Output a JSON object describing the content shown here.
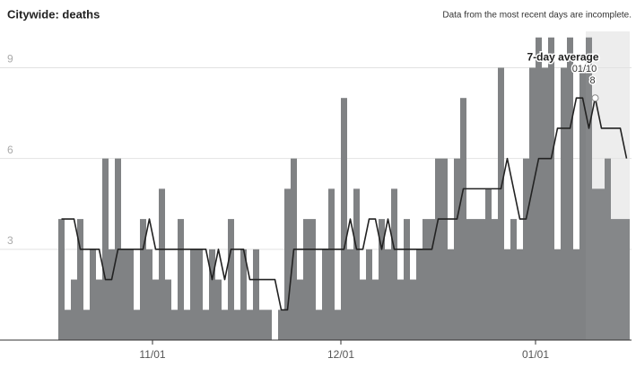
{
  "chart_data": {
    "type": "bar",
    "title": "Citywide: deaths",
    "note": "Data from the most recent days are incomplete.",
    "x": [
      "10/17",
      "10/18",
      "10/19",
      "10/20",
      "10/21",
      "10/22",
      "10/23",
      "10/24",
      "10/25",
      "10/26",
      "10/27",
      "10/28",
      "10/29",
      "10/30",
      "10/31",
      "11/01",
      "11/02",
      "11/03",
      "11/04",
      "11/05",
      "11/06",
      "11/07",
      "11/08",
      "11/09",
      "11/10",
      "11/11",
      "11/12",
      "11/13",
      "11/14",
      "11/15",
      "11/16",
      "11/17",
      "11/18",
      "11/19",
      "11/20",
      "11/21",
      "11/22",
      "11/23",
      "11/24",
      "11/25",
      "11/26",
      "11/27",
      "11/28",
      "11/29",
      "11/30",
      "12/01",
      "12/02",
      "12/03",
      "12/04",
      "12/05",
      "12/06",
      "12/07",
      "12/08",
      "12/09",
      "12/10",
      "12/11",
      "12/12",
      "12/13",
      "12/14",
      "12/15",
      "12/16",
      "12/17",
      "12/18",
      "12/19",
      "12/20",
      "12/21",
      "12/22",
      "12/23",
      "12/24",
      "12/25",
      "12/26",
      "12/27",
      "12/28",
      "12/29",
      "12/30",
      "12/31",
      "01/01",
      "01/02",
      "01/03",
      "01/04",
      "01/05",
      "01/06",
      "01/07",
      "01/08",
      "01/09",
      "01/10",
      "01/11",
      "01/12",
      "01/13",
      "01/14",
      "01/15"
    ],
    "series": [
      {
        "color": "#808284",
        "values": [
          4,
          1,
          2,
          4,
          1,
          3,
          2,
          6,
          3,
          6,
          3,
          3,
          1,
          4,
          3,
          2,
          5,
          2,
          1,
          4,
          1,
          3,
          3,
          1,
          3,
          2,
          1,
          4,
          1,
          3,
          1,
          3,
          1,
          1,
          0,
          1,
          5,
          6,
          2,
          4,
          4,
          1,
          3,
          5,
          1,
          8,
          3,
          5,
          2,
          3,
          2,
          4,
          3,
          5,
          2,
          4,
          2,
          3,
          4,
          4,
          6,
          6,
          3,
          6,
          8,
          4,
          4,
          4,
          5,
          4,
          9,
          3,
          4,
          3,
          6,
          9,
          10,
          9,
          10,
          3,
          9,
          10,
          3,
          9,
          10,
          5,
          5,
          6,
          4,
          4,
          4
        ]
      },
      {
        "name": "7-day average",
        "color": "#222222",
        "values": [
          4,
          4,
          4,
          3,
          3,
          3,
          3,
          2,
          2,
          3,
          3,
          3,
          3,
          3,
          4,
          3,
          3,
          3,
          3,
          3,
          3,
          3,
          3,
          3,
          2,
          3,
          2,
          3,
          3,
          3,
          2,
          2,
          2,
          2,
          2,
          1,
          1,
          3,
          3,
          3,
          3,
          3,
          3,
          3,
          3,
          3,
          4,
          3,
          3,
          4,
          4,
          3,
          4,
          3,
          3,
          3,
          3,
          3,
          3,
          3,
          4,
          4,
          4,
          4,
          5,
          5,
          5,
          5,
          5,
          5,
          5,
          6,
          5,
          4,
          4,
          5,
          6,
          6,
          6,
          7,
          7,
          7,
          8,
          8,
          7,
          8,
          7,
          7,
          7,
          7,
          6
        ]
      }
    ],
    "annotation": {
      "label": "7-day average",
      "date": "01/10",
      "value": 8
    },
    "incomplete_from": "01/09",
    "ylim": [
      0,
      10.2
    ],
    "yticks": [
      3,
      6,
      9
    ],
    "xticks": [
      "11/01",
      "12/01",
      "01/01"
    ],
    "grid": true
  }
}
